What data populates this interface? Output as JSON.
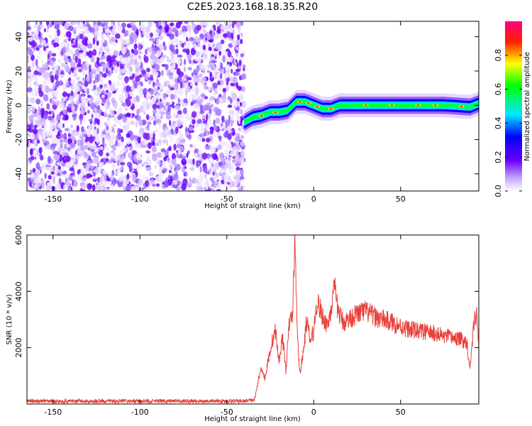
{
  "title": "C2E5.2023.168.18.35.R20",
  "spectrogram": {
    "type": "heatmap",
    "xlabel": "Height of straight line (km)",
    "ylabel": "Frequency (Hz)",
    "xlim": [
      -165,
      95
    ],
    "ylim": [
      -50,
      49
    ],
    "x_ticks": [
      -150,
      -100,
      -50,
      0,
      50
    ],
    "y_ticks": [
      -40,
      -20,
      0,
      20,
      40
    ],
    "noise_region_x": [
      -165,
      -40
    ],
    "signal_trace": [
      {
        "x": -40,
        "y": -10
      },
      {
        "x": -35,
        "y": -7
      },
      {
        "x": -30,
        "y": -6
      },
      {
        "x": -25,
        "y": -4
      },
      {
        "x": -20,
        "y": -4
      },
      {
        "x": -15,
        "y": -3
      },
      {
        "x": -12,
        "y": 0
      },
      {
        "x": -10,
        "y": 2
      },
      {
        "x": -5,
        "y": 2
      },
      {
        "x": 0,
        "y": 0
      },
      {
        "x": 5,
        "y": -2
      },
      {
        "x": 10,
        "y": -2
      },
      {
        "x": 15,
        "y": 0
      },
      {
        "x": 25,
        "y": 0
      },
      {
        "x": 50,
        "y": 0
      },
      {
        "x": 75,
        "y": 0
      },
      {
        "x": 90,
        "y": -1
      },
      {
        "x": 95,
        "y": 1
      }
    ]
  },
  "colorbar": {
    "label": "Normalized spectral amplitude",
    "ticks": [
      "0.0",
      "0.2",
      "0.4",
      "0.6",
      "0.8"
    ],
    "range": [
      0,
      1
    ],
    "colors": [
      "#ffffff",
      "#7700ff",
      "#0000ff",
      "#00ffff",
      "#00ff00",
      "#ffff00",
      "#ff0000",
      "#ff0088"
    ]
  },
  "chart_data": {
    "type": "line",
    "xlabel": "Height of straight line (km)",
    "ylabel": "SNR (10 * v/v)",
    "xlim": [
      -165,
      95
    ],
    "ylim": [
      0,
      6000
    ],
    "x_ticks": [
      -150,
      -100,
      -50,
      0,
      50
    ],
    "y_ticks": [
      2000,
      4000,
      6000
    ],
    "color": "#e8403a",
    "series": [
      {
        "x": [
          -165,
          -150,
          -125,
          -100,
          -75,
          -50,
          -40,
          -34,
          -32,
          -30,
          -28,
          -26,
          -24,
          -22,
          -20,
          -18,
          -16,
          -14,
          -12,
          -11,
          -10,
          -9,
          -8,
          -6,
          -4,
          -2,
          0,
          2,
          5,
          8,
          10,
          12,
          14,
          17,
          20,
          25,
          30,
          35,
          40,
          45,
          50,
          55,
          60,
          65,
          70,
          75,
          80,
          84,
          88,
          90,
          92,
          94,
          95
        ],
        "y": [
          100,
          100,
          100,
          100,
          100,
          100,
          100,
          150,
          800,
          1300,
          900,
          1600,
          2200,
          2600,
          1500,
          2400,
          1200,
          2900,
          3200,
          6000,
          3800,
          2000,
          1100,
          1800,
          3000,
          2200,
          2600,
          3700,
          3100,
          2800,
          3400,
          4100,
          3300,
          2900,
          3000,
          3200,
          3300,
          3100,
          3000,
          2900,
          2750,
          2650,
          2600,
          2550,
          2500,
          2400,
          2350,
          2300,
          2200,
          1300,
          2800,
          3400,
          1800
        ]
      }
    ]
  }
}
